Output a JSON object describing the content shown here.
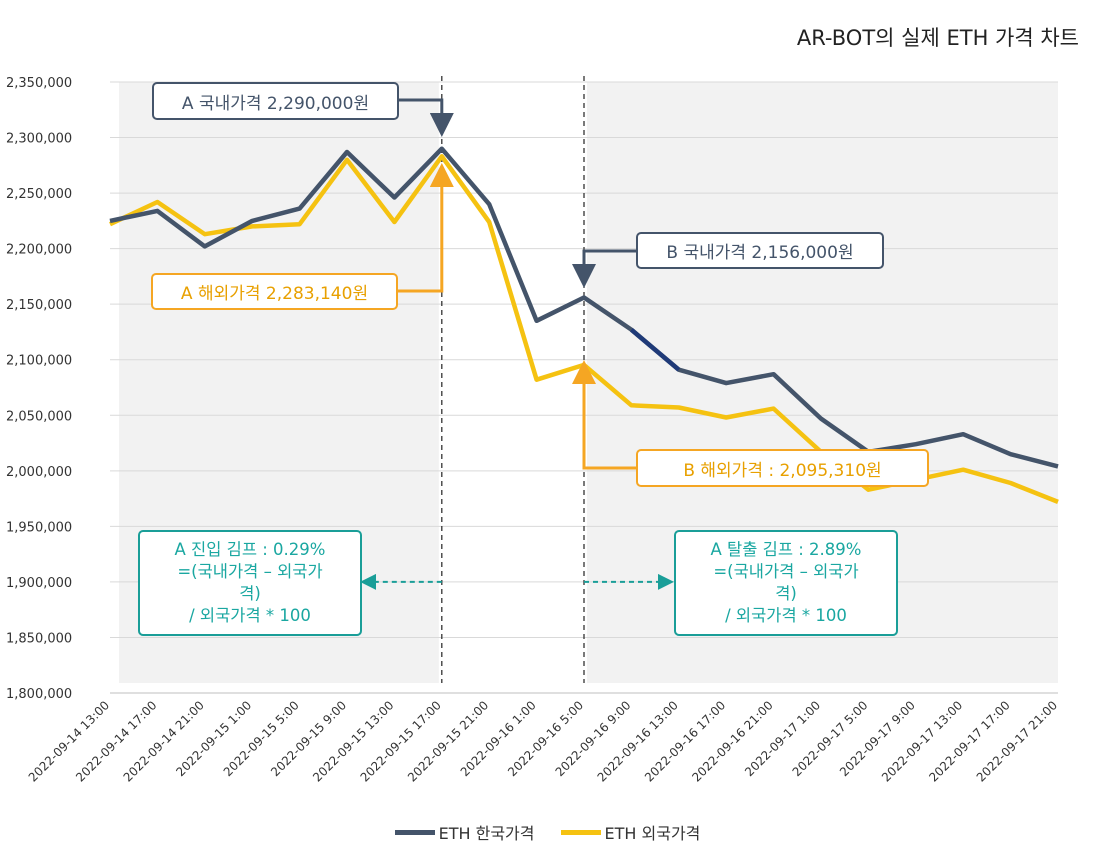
{
  "title": "AR-BOT의 실제 ETH 가격 차트",
  "chart_data": {
    "type": "line",
    "title": "AR-BOT의 실제 ETH 가격 차트",
    "ylim": [
      1800000,
      2350000
    ],
    "y_ticks": [
      "2,350,000",
      "2,300,000",
      "2,250,000",
      "2,200,000",
      "2,150,000",
      "2,100,000",
      "2,050,000",
      "2,000,000",
      "1,950,000",
      "1,900,000",
      "1,850,000",
      "1,800,000"
    ],
    "y_tick_values": [
      2350000,
      2300000,
      2250000,
      2200000,
      2150000,
      2100000,
      2050000,
      2000000,
      1950000,
      1900000,
      1850000,
      1800000
    ],
    "categories": [
      "2022-09-14 13:00",
      "2022-09-14 17:00",
      "2022-09-14 21:00",
      "2022-09-15 1:00",
      "2022-09-15 5:00",
      "2022-09-15 9:00",
      "2022-09-15 13:00",
      "2022-09-15 17:00",
      "2022-09-15 21:00",
      "2022-09-16 1:00",
      "2022-09-16 5:00",
      "2022-09-16 9:00",
      "2022-09-16 13:00",
      "2022-09-16 17:00",
      "2022-09-16 21:00",
      "2022-09-17 1:00",
      "2022-09-17 5:00",
      "2022-09-17 9:00",
      "2022-09-17 13:00",
      "2022-09-17 17:00",
      "2022-09-17 21:00"
    ],
    "series": [
      {
        "name": "ETH 한국가격",
        "color": "#44546a",
        "values": [
          2225000,
          2234000,
          2202000,
          2225000,
          2236000,
          2287000,
          2246000,
          2290000,
          2240000,
          2135000,
          2156000,
          2127000,
          2091000,
          2079000,
          2087000,
          2047000,
          2017000,
          2024000,
          2033000,
          2015000,
          2004000
        ]
      },
      {
        "name": "ETH 외국가격",
        "color": "#f5c211",
        "values": [
          2222000,
          2242000,
          2213000,
          2220000,
          2222000,
          2280000,
          2224000,
          2283140,
          2224000,
          2082000,
          2095310,
          2059000,
          2057000,
          2048000,
          2056000,
          2017000,
          1983000,
          1992000,
          2001000,
          1989000,
          1972000
        ]
      }
    ],
    "grid": true,
    "legend_position": "bottom",
    "shaded_regions": [
      {
        "from_index": 0,
        "to_index": 7
      },
      {
        "from_index": 10,
        "to_index": 20
      }
    ],
    "annotations": {
      "a_domestic": "A 국내가격 2,290,000원",
      "a_foreign": "A 해외가격 2,283,140원",
      "b_domestic": "B 국내가격 2,156,000원",
      "b_foreign": "B 해외가격 : 2,095,310원",
      "a_premium": [
        "A 진입 김프 : 0.29%",
        "=(국내가격 – 외국가",
        "격)",
        "/ 외국가격 * 100"
      ],
      "b_premium": [
        "A 탈출 김프 : 2.89%",
        "=(국내가격 – 외국가",
        "격)",
        "/ 외국가격 * 100"
      ]
    }
  },
  "colors": {
    "domestic": "#44546a",
    "foreign": "#f5c211",
    "annotation_gold": "#f5a623",
    "teal": "#1a9e98",
    "shade": "#f2f2f2",
    "grid": "#d9d9d9"
  }
}
